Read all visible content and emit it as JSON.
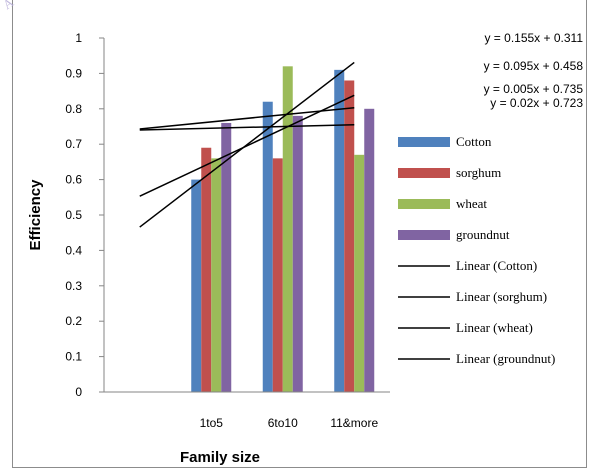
{
  "chart_data": {
    "type": "bar",
    "xlabel": "Family size",
    "ylabel": "Efficiency",
    "categories": [
      "",
      "1to5",
      "6to10",
      "11&more"
    ],
    "ylim": [
      0,
      1
    ],
    "yticks": [
      "0",
      "0.1",
      "0.2",
      "0.3",
      "0.4",
      "0.5",
      "0.6",
      "0.7",
      "0.8",
      "0.9",
      "1"
    ],
    "grid": false,
    "legend_position": "right",
    "series": [
      {
        "name": "Cotton",
        "color": "#4f81bd",
        "values": [
          null,
          0.6,
          0.82,
          0.91
        ]
      },
      {
        "name": "sorghum",
        "color": "#c0504d",
        "values": [
          null,
          0.69,
          0.66,
          0.88
        ]
      },
      {
        "name": "wheat",
        "color": "#9bbb59",
        "values": [
          null,
          0.66,
          0.92,
          0.67
        ]
      },
      {
        "name": "groundnut",
        "color": "#8064a2",
        "values": [
          null,
          0.76,
          0.78,
          0.8
        ]
      }
    ],
    "trendlines": [
      {
        "name": "Linear (Cotton)",
        "slope": 0.155,
        "intercept": 0.311,
        "equation": "y = 0.155x + 0.311"
      },
      {
        "name": "Linear (sorghum)",
        "slope": 0.095,
        "intercept": 0.458,
        "equation": "y = 0.095x + 0.458"
      },
      {
        "name": "Linear (wheat)",
        "slope": 0.005,
        "intercept": 0.735,
        "equation": "y = 0.005x + 0.735"
      },
      {
        "name": "Linear (groundnut)",
        "slope": 0.02,
        "intercept": 0.723,
        "equation": "y = 0.02x + 0.723"
      }
    ],
    "trendline_color": "#000000"
  },
  "watermark_text": "A"
}
